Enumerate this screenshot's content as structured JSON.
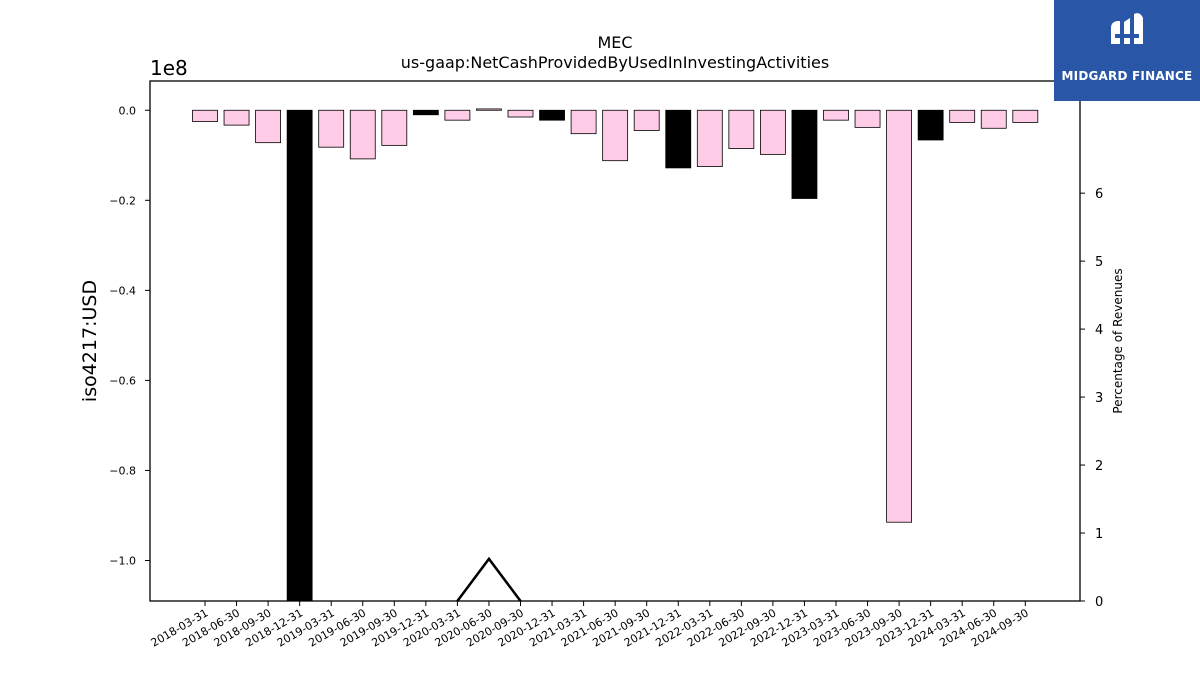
{
  "logo": {
    "text": "MIDGARD FINANCE",
    "icon": "midgard-logo-icon",
    "background": "#2a56a8"
  },
  "chart_data": {
    "type": "bar",
    "title": "MEC",
    "subtitle": "us-gaap:NetCashProvidedByUsedInInvestingActivities",
    "ylabel": "iso4217:USD",
    "y_scale_label": "1e8",
    "ylim": [
      -1.09,
      0.065
    ],
    "y_ticks": [
      0.0,
      -0.2,
      -0.4,
      -0.6,
      -0.8,
      -1.0
    ],
    "y_tick_labels": [
      "0.0",
      "−0.2",
      "−0.4",
      "−0.6",
      "−0.8",
      "−1.0"
    ],
    "y2label": "Percentage of Revenues",
    "y2lim": [
      0,
      7.65
    ],
    "y2_ticks": [
      0,
      1,
      2,
      3,
      4,
      5,
      6
    ],
    "y2_tick_labels": [
      "0",
      "1",
      "2",
      "3",
      "4",
      "5",
      "6"
    ],
    "categories": [
      "2018-03-31",
      "2018-06-30",
      "2018-09-30",
      "2018-12-31",
      "2019-03-31",
      "2019-06-30",
      "2019-09-30",
      "2019-12-31",
      "2020-03-31",
      "2020-06-30",
      "2020-09-30",
      "2020-12-31",
      "2021-03-31",
      "2021-06-30",
      "2021-09-30",
      "2021-12-31",
      "2022-03-31",
      "2022-06-30",
      "2022-09-30",
      "2022-12-31",
      "2023-03-31",
      "2023-06-30",
      "2023-09-30",
      "2023-12-31",
      "2024-03-31",
      "2024-06-30",
      "2024-09-30"
    ],
    "values": [
      -0.025,
      -0.033,
      -0.072,
      -1.09,
      -0.082,
      -0.108,
      -0.078,
      -0.01,
      -0.022,
      0.003,
      -0.015,
      -0.022,
      -0.052,
      -0.112,
      -0.045,
      -0.128,
      -0.125,
      -0.085,
      -0.098,
      -0.196,
      -0.022,
      -0.038,
      -0.915,
      -0.066,
      -0.027,
      -0.04,
      -0.027
    ],
    "bar_colors": [
      "#ffcce8",
      "#ffcce8",
      "#ffcce8",
      "#000000",
      "#ffcce8",
      "#ffcce8",
      "#ffcce8",
      "#000000",
      "#ffcce8",
      "#ffcce8",
      "#ffcce8",
      "#000000",
      "#ffcce8",
      "#ffcce8",
      "#ffcce8",
      "#000000",
      "#ffcce8",
      "#ffcce8",
      "#ffcce8",
      "#000000",
      "#ffcce8",
      "#ffcce8",
      "#ffcce8",
      "#000000",
      "#ffcce8",
      "#ffcce8",
      "#ffcce8"
    ],
    "line_series": {
      "name": "",
      "x": [
        "2020-03-31",
        "2020-06-30",
        "2020-09-30"
      ],
      "values": [
        0,
        0.62,
        0
      ],
      "color": "#000000"
    },
    "grid": false
  }
}
